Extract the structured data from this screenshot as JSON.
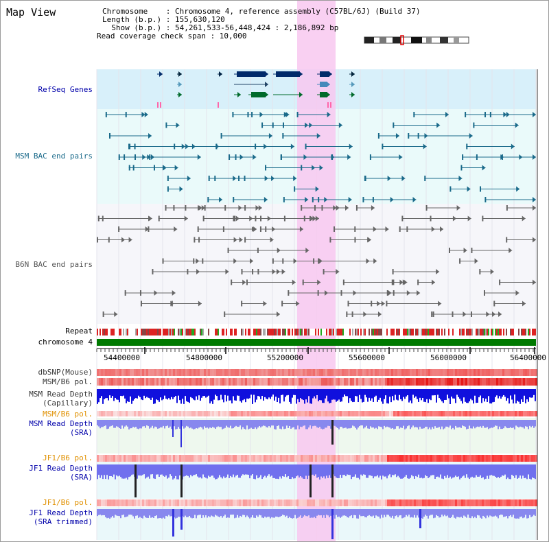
{
  "page": {
    "title": "Map View"
  },
  "info": {
    "chromosome_line": "Chromosome    : Chromosome 4, reference assembly (C57BL/6J) (Build 37)",
    "length_line": "Length (b.p.) : 155,630,120",
    "show_line": "  Show (b.p.) : 54,261,533-56,448,424 : 2,186,892 bp",
    "coverage_line": "Read coverage check span : 10,000"
  },
  "tracks": {
    "refseq": "RefSeq Genes",
    "msm_bac": "MSM BAC end pairs",
    "b6n_bac": "B6N BAC end pairs",
    "repeat": "Repeat",
    "chromosome": "chromosome 4",
    "dbsnp": "dbSNP(Mouse)",
    "msm_b6_pol_1": "MSM/B6 pol.",
    "msm_read_depth_cap": "MSM Read Depth\n(Capillary)",
    "msm_b6_pol_2": "MSM/B6 pol.",
    "msm_read_depth_sra": "MSM Read Depth\n(SRA)",
    "jf1_b6_pol_1": "JF1/B6 pol.",
    "jf1_read_depth_sra": "JF1 Read Depth\n(SRA)",
    "jf1_b6_pol_2": "JF1/B6 pol.",
    "jf1_read_depth_trim": "JF1 Read Depth\n(SRA trimmed)"
  },
  "axis": {
    "ticks": [
      "54400000",
      "54800000",
      "55200000",
      "55600000",
      "56000000",
      "56400000"
    ],
    "range_start": 54261533,
    "range_end": 56448424
  },
  "colors": {
    "track_label_blue": "#0000aa",
    "track_label_orange": "#e09000",
    "highlight": "#f8c8f0",
    "refseq_bg": "#d8f0fa",
    "bac_bg": "#eafafa",
    "msm_line": "#1a6a8a",
    "b6n_line": "#666666",
    "chromosome_bar": "#007a00"
  }
}
